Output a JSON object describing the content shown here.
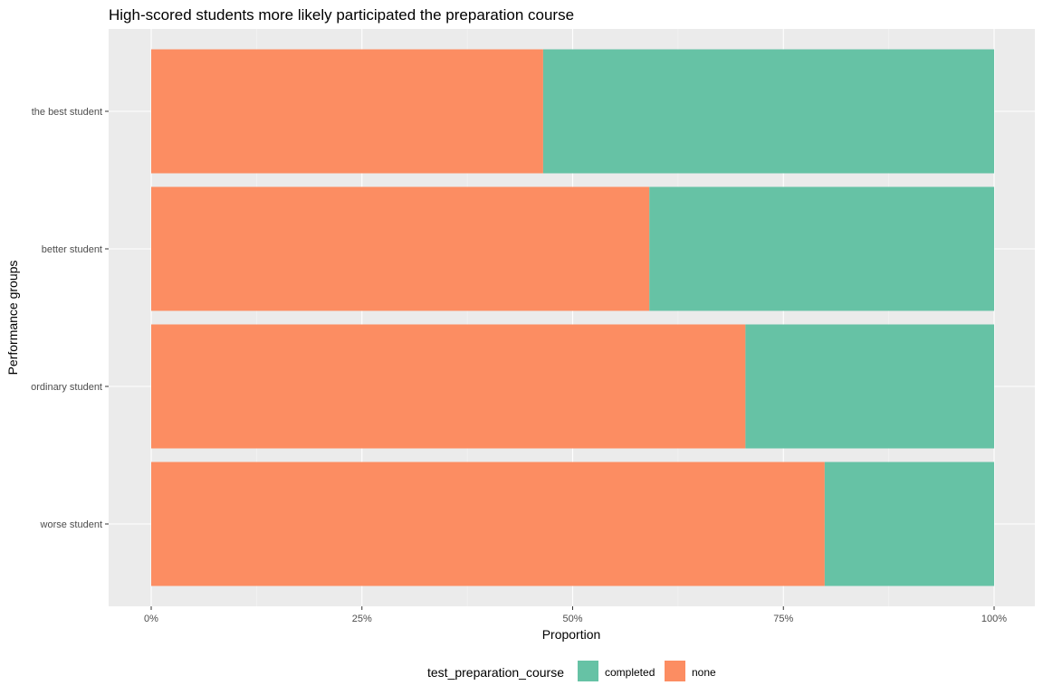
{
  "colors": {
    "panel_background": "#EBEBEB",
    "grid_major": "#FFFFFF",
    "grid_minor": "#F5F5F5",
    "completed": "#66C2A5",
    "none": "#FC8D62",
    "tick_text": "#4D4D4D",
    "tick_mark": "#333333"
  },
  "chart_data": {
    "type": "bar",
    "orientation": "horizontal",
    "stacked": true,
    "position": "fill",
    "title": "High-scored students more likely participated the preparation course",
    "xlabel": "Proportion",
    "ylabel": "Performance groups",
    "xlim": [
      0,
      1
    ],
    "x_ticks": [
      0,
      0.25,
      0.5,
      0.75,
      1
    ],
    "x_tick_labels": [
      "0%",
      "25%",
      "50%",
      "75%",
      "100%"
    ],
    "categories": [
      "the best student",
      "better student",
      "ordinary student",
      "worse student"
    ],
    "series": [
      {
        "name": "none",
        "values": [
          0.465,
          0.591,
          0.705,
          0.799
        ]
      },
      {
        "name": "completed",
        "values": [
          0.535,
          0.409,
          0.295,
          0.201
        ]
      }
    ],
    "grid": true,
    "legend": {
      "title": "test_preparation_course",
      "position": "bottom",
      "items": [
        "completed",
        "none"
      ]
    }
  }
}
